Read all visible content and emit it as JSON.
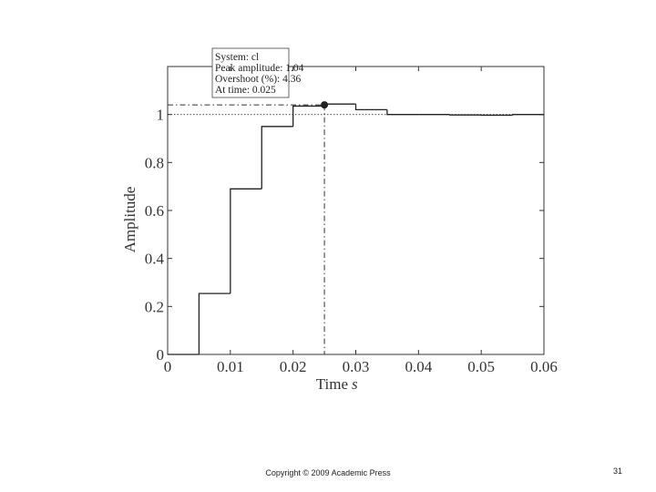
{
  "chart_data": {
    "type": "step",
    "x_label": "Time",
    "x_unit": "s",
    "y_label": "Amplitude",
    "x": [
      0,
      0.005,
      0.01,
      0.015,
      0.02,
      0.025,
      0.03,
      0.035,
      0.04,
      0.045,
      0.05,
      0.055
    ],
    "values": [
      0,
      0.254,
      0.69,
      0.95,
      1.035,
      1.0436,
      1.02,
      1.0,
      1.0,
      0.998,
      0.997,
      1.0
    ],
    "color": "#222222",
    "xlim": [
      0,
      0.06
    ],
    "ylim": [
      0,
      1.2
    ],
    "xticks": [
      0,
      0.01,
      0.02,
      0.03,
      0.04,
      0.05,
      0.06
    ],
    "yticks": [
      0,
      0.2,
      0.4,
      0.6,
      0.8,
      1
    ],
    "reference": 1,
    "peak": {
      "x": 0.025,
      "y": 1.04
    },
    "annotation": [
      "System: cl",
      "Peak amplitude: 1.04",
      "Overshoot (%): 4.36",
      "At time: 0.025"
    ]
  },
  "footer": {
    "copyright": "Copyright © 2009 Academic Press",
    "page": "31"
  }
}
